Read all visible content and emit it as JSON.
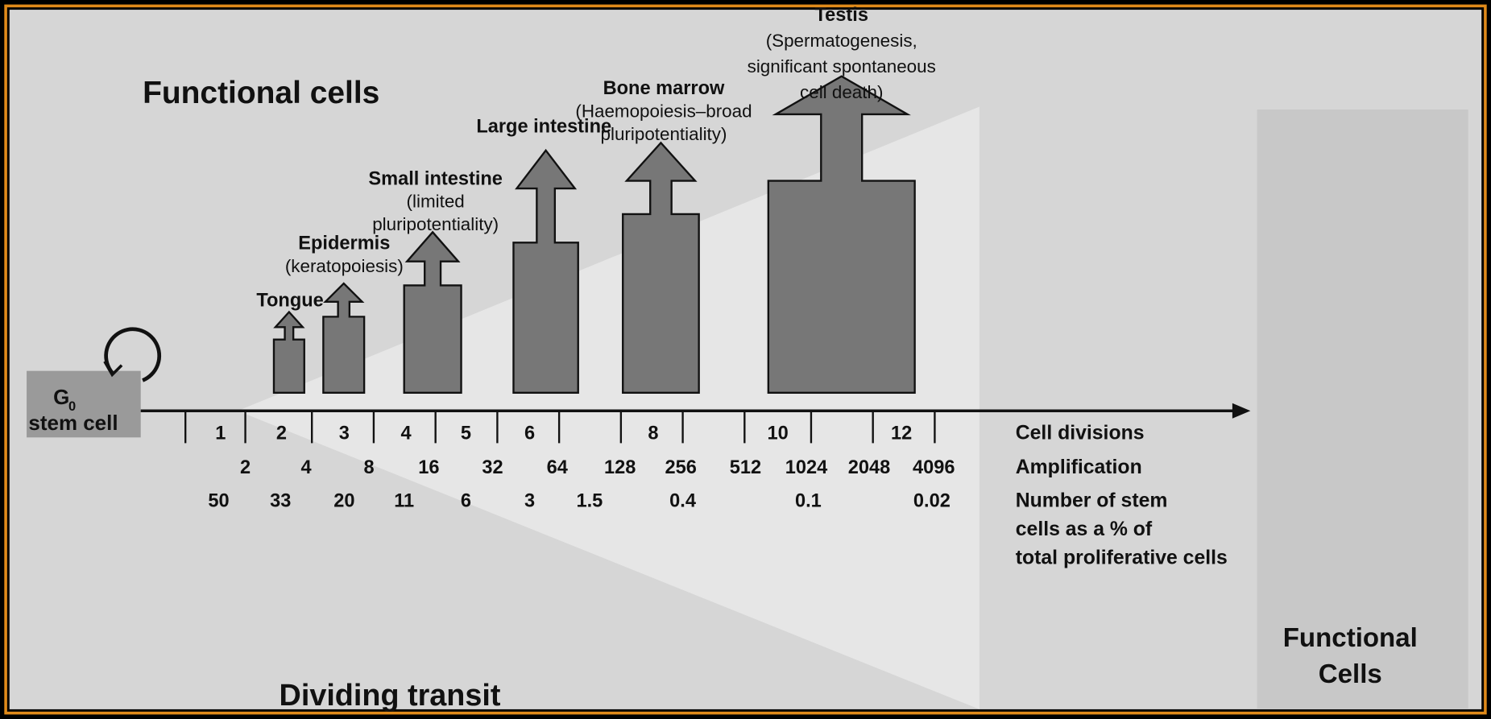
{
  "title": "Functional cells",
  "bottom_label": "Dividing transit",
  "right_label": [
    "Functional",
    "Cells"
  ],
  "stem_cell": {
    "symbol": "G",
    "subscript": "0",
    "label": "stem cell"
  },
  "tissues": [
    {
      "lines": [
        "Tongue"
      ]
    },
    {
      "lines": [
        "Epidermis",
        "(keratopoiesis)"
      ]
    },
    {
      "lines": [
        "Small intestine",
        "(limited",
        "pluripotentiality)"
      ]
    },
    {
      "lines": [
        "Large intestine"
      ]
    },
    {
      "lines": [
        "Bone marrow",
        "(Haemopoiesis–broad",
        "pluripotentiality)"
      ]
    },
    {
      "lines": [
        "Testis",
        "(Spermatogenesis,",
        "significant spontaneous",
        "cell death)"
      ]
    }
  ],
  "rows": [
    {
      "label": [
        "Cell divisions"
      ],
      "values": [
        "1",
        "2",
        "3",
        "4",
        "5",
        "6",
        "8",
        "10",
        "12"
      ]
    },
    {
      "label": [
        "Amplification"
      ],
      "values": [
        "2",
        "4",
        "8",
        "16",
        "32",
        "64",
        "128",
        "256",
        "512",
        "1024",
        "2048",
        "4096"
      ]
    },
    {
      "label": [
        "Number of stem",
        "cells as a % of",
        "total proliferative cells"
      ],
      "values": [
        "50",
        "33",
        "20",
        "11",
        "6",
        "3",
        "1.5",
        "0.4",
        "0.1",
        "0.02"
      ]
    }
  ]
}
